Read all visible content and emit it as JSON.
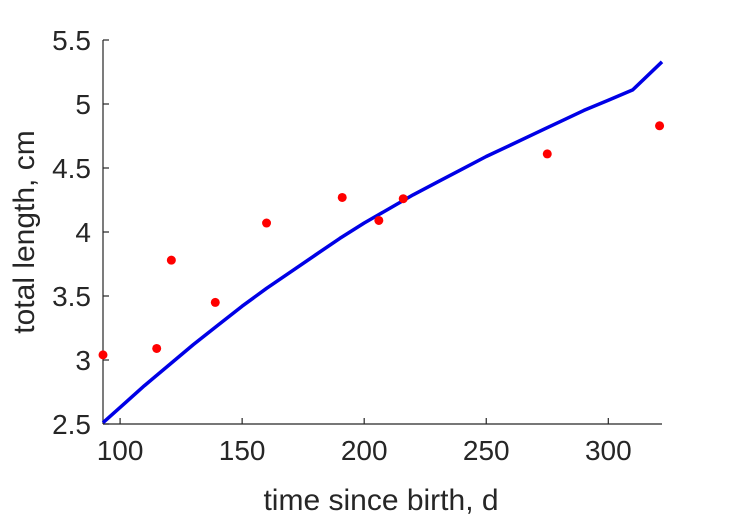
{
  "chart_data": {
    "type": "scatter",
    "title": "",
    "xlabel": "time since birth, d",
    "ylabel": "total length, cm",
    "xlim": [
      93,
      322
    ],
    "ylim": [
      2.5,
      5.5
    ],
    "xticks": [
      100,
      150,
      200,
      250,
      300
    ],
    "yticks": [
      2.5,
      3,
      3.5,
      4,
      4.5,
      5,
      5.5
    ],
    "xtick_labels": [
      "100",
      "150",
      "200",
      "250",
      "300"
    ],
    "ytick_labels": [
      "2.5",
      "3",
      "3.5",
      "4",
      "4.5",
      "5",
      "5.5"
    ],
    "grid": false,
    "series": [
      {
        "kind": "scatter",
        "color": "#ff0000",
        "x": [
          93,
          115,
          121,
          139,
          160,
          191,
          206,
          216,
          275,
          321
        ],
        "y": [
          3.04,
          3.09,
          3.78,
          3.45,
          4.07,
          4.27,
          4.09,
          4.26,
          4.61,
          4.83
        ]
      },
      {
        "kind": "line",
        "color": "#0000e6",
        "x": [
          93,
          100,
          110,
          120,
          130,
          140,
          150,
          160,
          170,
          180,
          190,
          200,
          210,
          220,
          230,
          240,
          250,
          260,
          270,
          280,
          290,
          300,
          310,
          322
        ],
        "y": [
          2.51,
          2.63,
          2.8,
          2.96,
          3.12,
          3.27,
          3.42,
          3.56,
          3.69,
          3.82,
          3.95,
          4.07,
          4.18,
          4.29,
          4.39,
          4.49,
          4.59,
          4.68,
          4.77,
          4.86,
          4.95,
          5.03,
          5.11,
          5.33
        ]
      }
    ]
  }
}
